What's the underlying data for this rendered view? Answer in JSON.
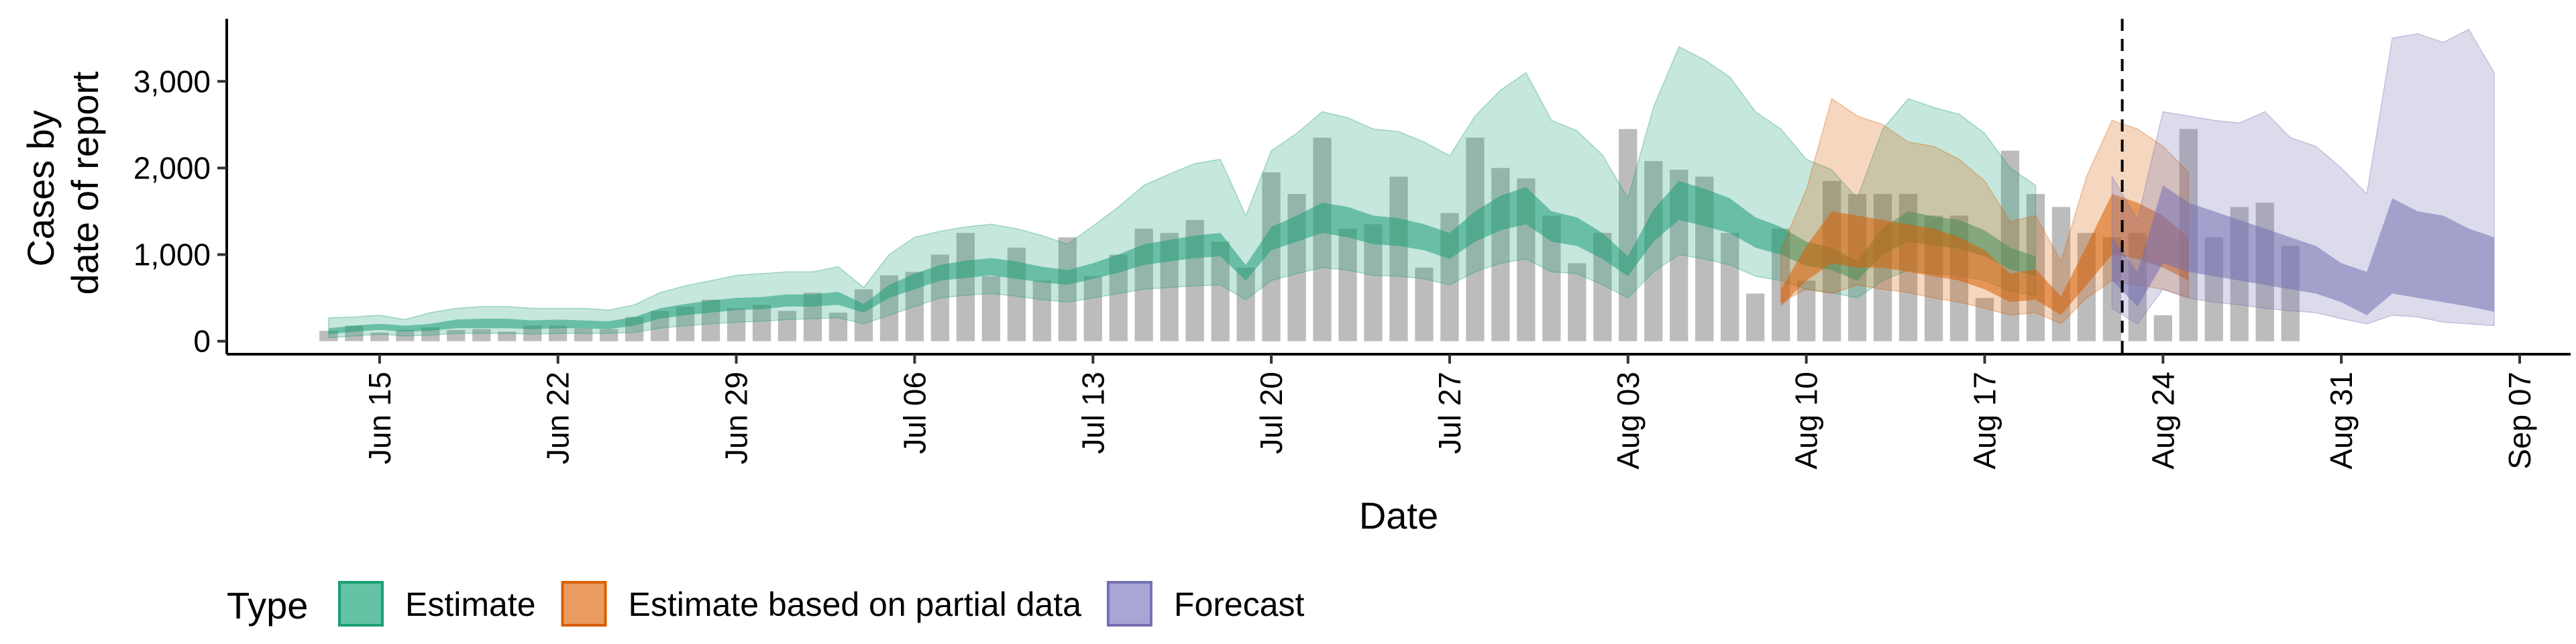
{
  "chart_data": {
    "type": "area",
    "xlabel": "Date",
    "ylabel_lines": [
      "Cases by",
      "date of report"
    ],
    "x_range": [
      "2020-06-09",
      "2020-09-09"
    ],
    "ylim": [
      -150,
      3800
    ],
    "y_ticks": [
      0,
      1000,
      2000,
      3000
    ],
    "y_tick_labels": [
      "0",
      "1,000",
      "2,000",
      "3,000"
    ],
    "x_ticks": [
      "2020-06-15",
      "2020-06-22",
      "2020-06-29",
      "2020-07-06",
      "2020-07-13",
      "2020-07-20",
      "2020-07-27",
      "2020-08-03",
      "2020-08-10",
      "2020-08-17",
      "2020-08-24",
      "2020-08-31",
      "2020-09-07"
    ],
    "x_tick_labels": [
      "Jun 15",
      "Jun 22",
      "Jun 29",
      "Jul 06",
      "Jul 13",
      "Jul 20",
      "Jul 27",
      "Aug 03",
      "Aug 10",
      "Aug 17",
      "Aug 24",
      "Aug 31",
      "Sep 07"
    ],
    "vline_date": "2020-08-22",
    "grid": false,
    "legend": {
      "title": "Type",
      "position": "bottom-left",
      "items": [
        {
          "label": "Estimate",
          "fill": "#66c2a5",
          "border": "#1b9e77"
        },
        {
          "label": "Estimate based on partial data",
          "fill": "#eb9b5f",
          "border": "#d95f02"
        },
        {
          "label": "Forecast",
          "fill": "#a9a6d6",
          "border": "#7570b3"
        }
      ]
    },
    "bars": {
      "color": "#a6a6a6",
      "start_date": "2020-06-13",
      "values": [
        120,
        180,
        100,
        130,
        160,
        130,
        140,
        110,
        180,
        180,
        150,
        140,
        280,
        350,
        400,
        480,
        380,
        420,
        350,
        560,
        330,
        600,
        760,
        800,
        1000,
        1250,
        750,
        1080,
        700,
        1200,
        750,
        1000,
        1300,
        1250,
        1400,
        1150,
        850,
        1950,
        1700,
        2350,
        1300,
        1350,
        1900,
        850,
        1480,
        2350,
        2000,
        1880,
        1450,
        900,
        1250,
        2450,
        2080,
        1980,
        1900,
        1250,
        550,
        1300,
        700,
        1850,
        1700,
        1700,
        1700,
        1450,
        1450,
        500,
        2200,
        1700,
        1550,
        1250,
        1200,
        1250,
        300,
        2450,
        1200,
        1550,
        1600,
        1100
      ]
    },
    "series": [
      {
        "name": "Estimate",
        "fill": "#1b9e77",
        "start_date": "2020-06-13",
        "outer_lower": [
          40,
          60,
          80,
          60,
          70,
          90,
          90,
          90,
          80,
          90,
          90,
          90,
          100,
          150,
          180,
          200,
          220,
          230,
          250,
          260,
          270,
          200,
          300,
          400,
          500,
          530,
          550,
          520,
          480,
          450,
          500,
          550,
          600,
          620,
          640,
          650,
          480,
          700,
          780,
          850,
          820,
          760,
          750,
          720,
          650,
          800,
          900,
          950,
          800,
          780,
          650,
          500,
          800,
          1000,
          950,
          880,
          750,
          700,
          600,
          560,
          500,
          700,
          820,
          780,
          760,
          700,
          580,
          520
        ],
        "inner_lower": [
          80,
          110,
          130,
          110,
          120,
          150,
          150,
          150,
          140,
          150,
          150,
          140,
          180,
          260,
          300,
          330,
          360,
          370,
          400,
          400,
          420,
          330,
          500,
          600,
          700,
          730,
          760,
          720,
          680,
          650,
          720,
          790,
          880,
          920,
          960,
          980,
          700,
          1050,
          1150,
          1250,
          1200,
          1120,
          1100,
          1050,
          950,
          1150,
          1280,
          1350,
          1150,
          1100,
          950,
          750,
          1150,
          1400,
          1330,
          1250,
          1080,
          1000,
          870,
          820,
          700,
          1000,
          1150,
          1100,
          1070,
          980,
          830,
          750
        ],
        "inner_upper": [
          150,
          180,
          200,
          180,
          200,
          250,
          260,
          260,
          240,
          250,
          240,
          230,
          280,
          380,
          430,
          470,
          500,
          510,
          540,
          540,
          570,
          430,
          650,
          780,
          880,
          930,
          960,
          920,
          860,
          820,
          900,
          1000,
          1120,
          1170,
          1220,
          1250,
          880,
          1320,
          1450,
          1600,
          1550,
          1450,
          1420,
          1350,
          1250,
          1500,
          1680,
          1780,
          1500,
          1430,
          1250,
          980,
          1520,
          1850,
          1760,
          1650,
          1430,
          1320,
          1150,
          1080,
          920,
          1310,
          1500,
          1440,
          1400,
          1280,
          1080,
          980
        ],
        "outer_upper": [
          270,
          280,
          300,
          250,
          330,
          380,
          400,
          400,
          380,
          380,
          380,
          360,
          420,
          560,
          640,
          700,
          760,
          780,
          800,
          800,
          860,
          620,
          1000,
          1200,
          1270,
          1320,
          1350,
          1300,
          1220,
          1120,
          1330,
          1550,
          1800,
          1930,
          2050,
          2100,
          1450,
          2200,
          2400,
          2650,
          2580,
          2450,
          2420,
          2300,
          2140,
          2600,
          2900,
          3100,
          2550,
          2430,
          2150,
          1650,
          2700,
          3400,
          3250,
          3050,
          2650,
          2450,
          2100,
          1980,
          1650,
          2450,
          2800,
          2700,
          2620,
          2400,
          2000,
          1800
        ]
      },
      {
        "name": "Estimate based on partial data",
        "fill": "#d95f02",
        "start_date": "2020-08-09",
        "outer_lower": [
          450,
          600,
          550,
          650,
          600,
          560,
          500,
          450,
          380,
          300,
          330,
          200,
          500,
          700,
          650,
          600,
          500
        ],
        "inner_lower": [
          400,
          700,
          900,
          850,
          850,
          800,
          750,
          700,
          600,
          450,
          480,
          300,
          650,
          1000,
          950,
          850,
          700
        ],
        "inner_upper": [
          600,
          1100,
          1500,
          1450,
          1400,
          1350,
          1300,
          1200,
          1050,
          780,
          830,
          520,
          1100,
          1700,
          1600,
          1450,
          1200
        ],
        "outer_upper": [
          1050,
          1750,
          2800,
          2600,
          2500,
          2300,
          2250,
          2100,
          1850,
          1380,
          1450,
          920,
          1900,
          2550,
          2450,
          2250,
          1950
        ]
      },
      {
        "name": "Forecast",
        "fill": "#7570b3",
        "start_date": "2020-08-22",
        "outer_lower": [
          380,
          200,
          600,
          500,
          450,
          420,
          380,
          350,
          330,
          260,
          200,
          300,
          280,
          220,
          200,
          180
        ],
        "inner_lower": [
          700,
          400,
          900,
          800,
          750,
          700,
          650,
          600,
          550,
          450,
          300,
          550,
          500,
          450,
          400,
          340
        ],
        "inner_upper": [
          1200,
          800,
          1800,
          1600,
          1500,
          1400,
          1300,
          1200,
          1100,
          900,
          800,
          1650,
          1500,
          1450,
          1300,
          1200
        ],
        "outer_upper": [
          1900,
          1400,
          2650,
          2600,
          2550,
          2520,
          2650,
          2350,
          2250,
          2000,
          1700,
          3500,
          3550,
          3450,
          3600,
          3100
        ]
      }
    ]
  }
}
